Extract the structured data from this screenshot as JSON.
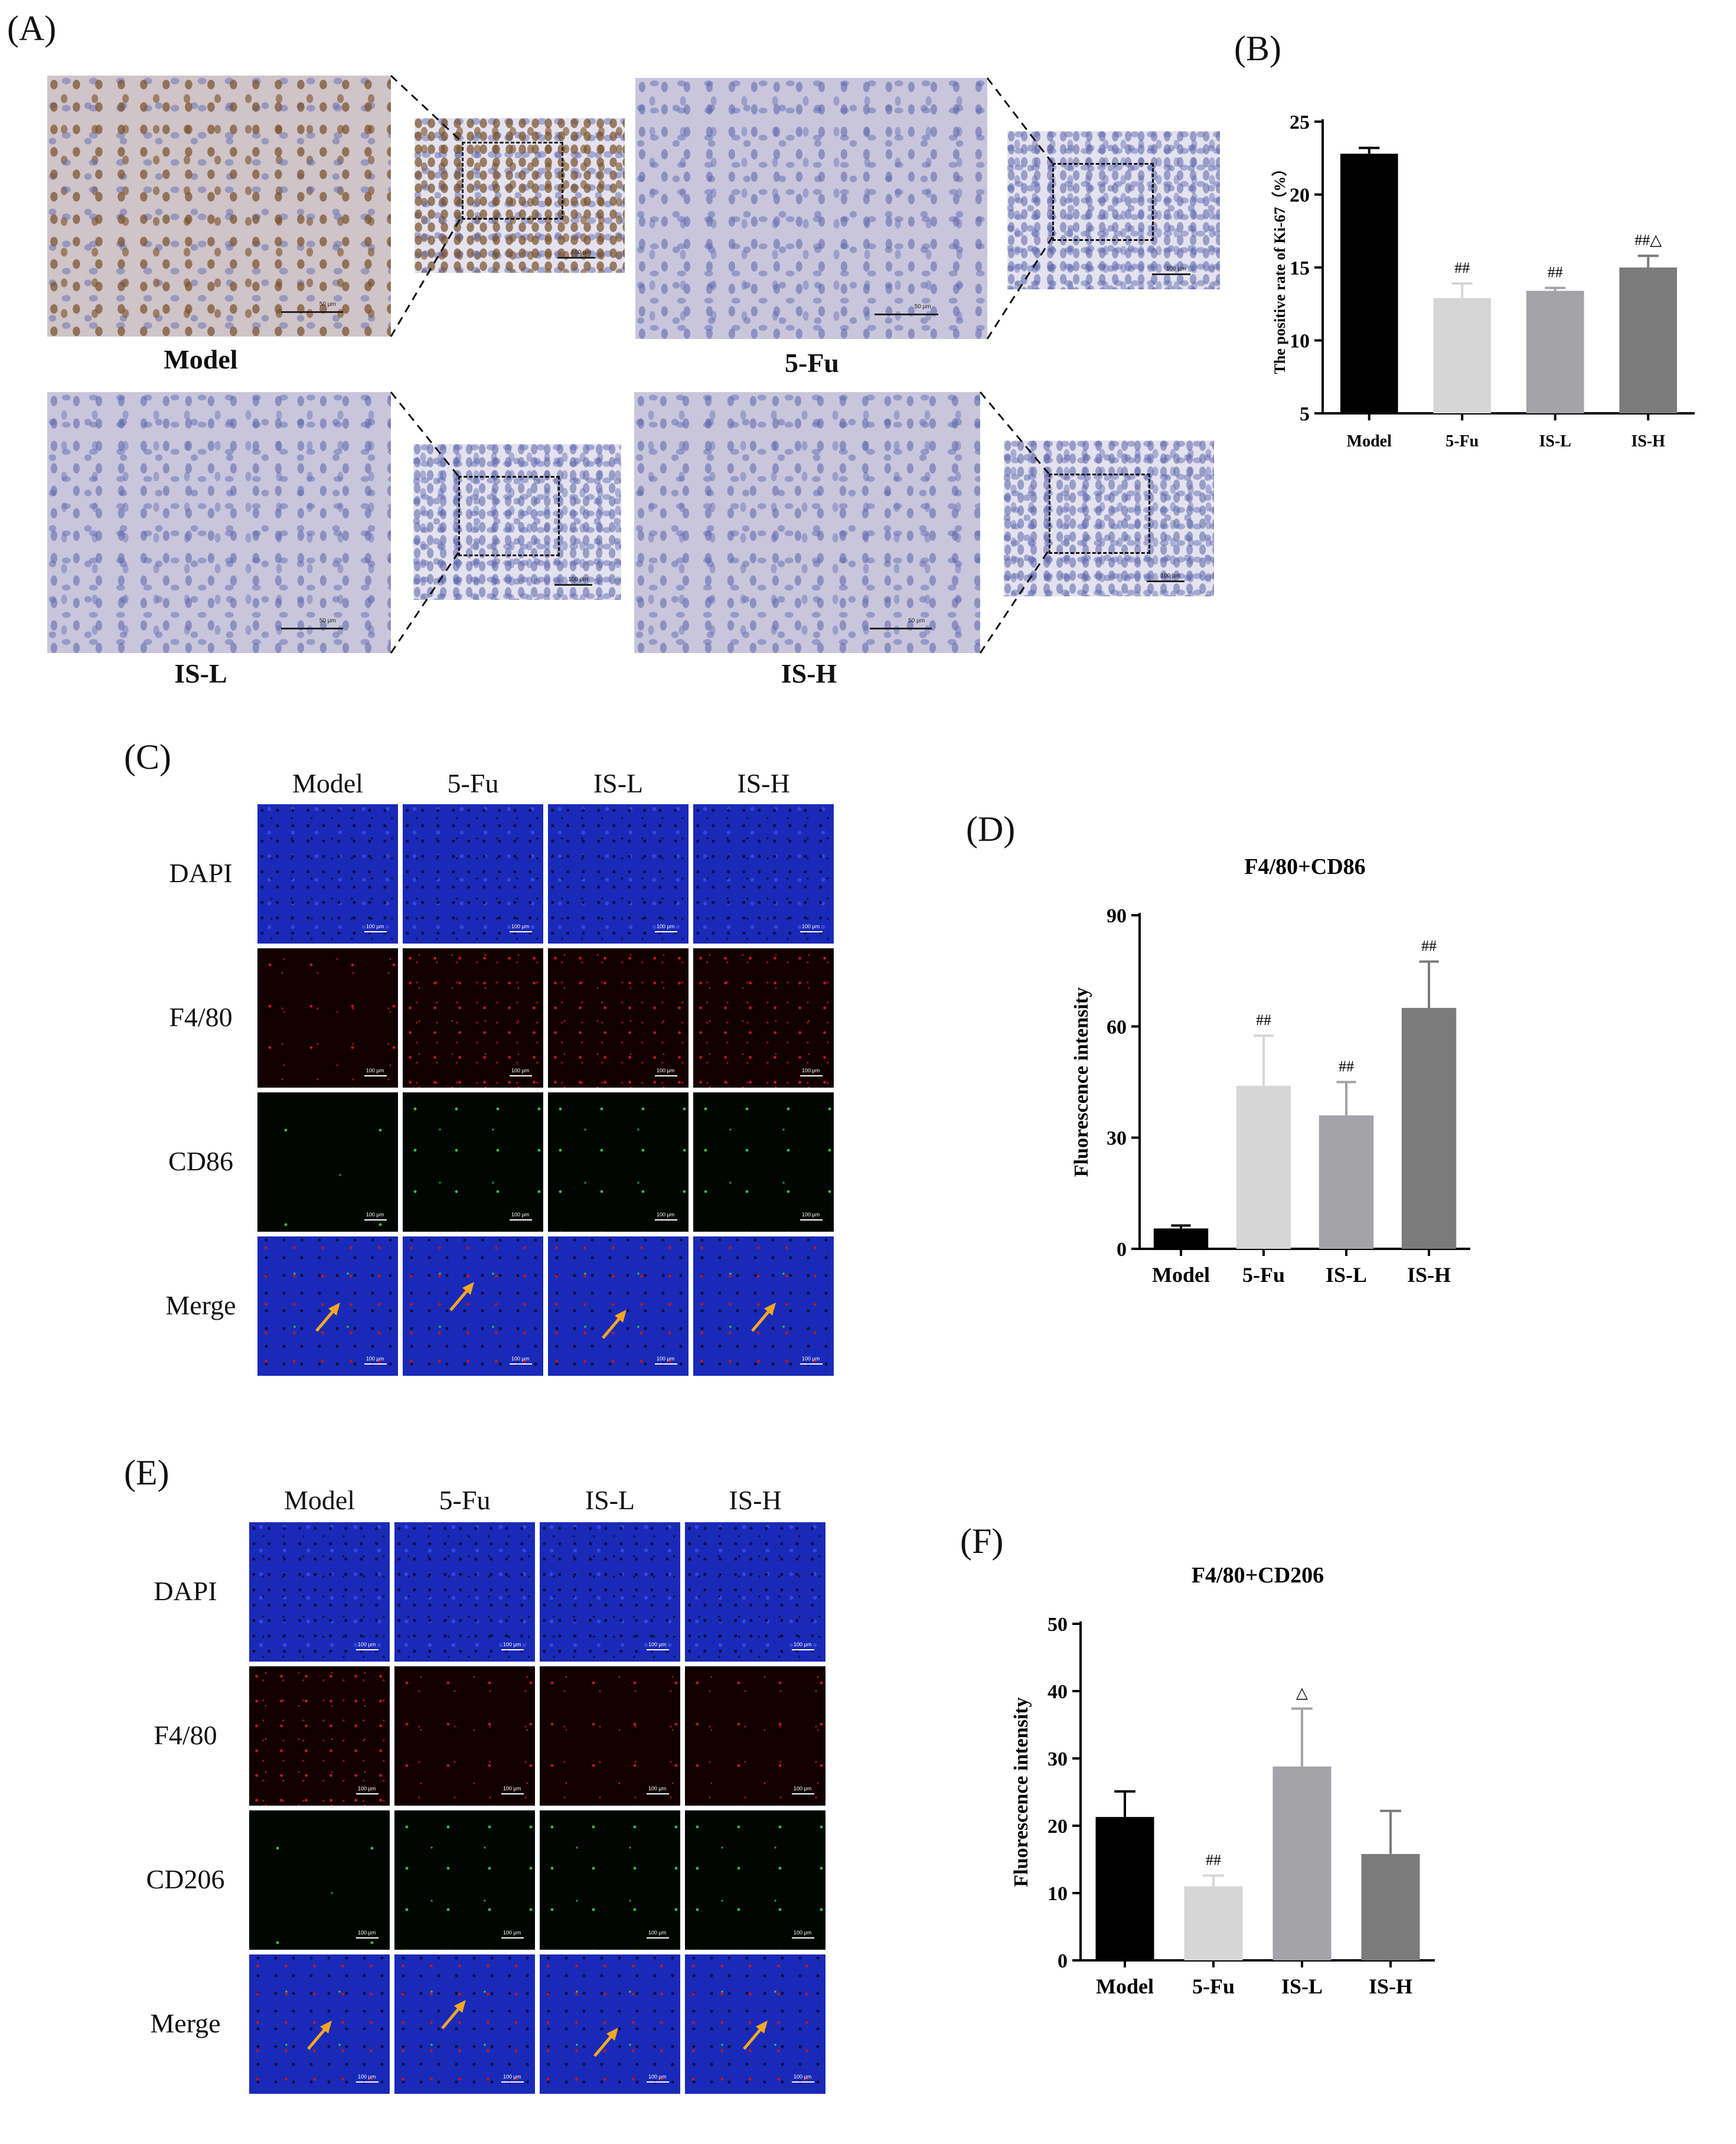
{
  "panels": {
    "A": {
      "letter": "(A)",
      "groups": [
        "Model",
        "5-Fu",
        "IS-L",
        "IS-H"
      ],
      "scale_hi": "50 μm",
      "scale_lo": "100 μm"
    },
    "B": {
      "letter": "(B)"
    },
    "C": {
      "letter": "(C)",
      "columns": [
        "Model",
        "5-Fu",
        "IS-L",
        "IS-H"
      ],
      "rows": [
        "DAPI",
        "F4/80",
        "CD86",
        "Merge"
      ],
      "scale": "100 μm"
    },
    "D": {
      "letter": "(D)"
    },
    "E": {
      "letter": "(E)",
      "columns": [
        "Model",
        "5-Fu",
        "IS-L",
        "IS-H"
      ],
      "rows": [
        "DAPI",
        "F4/80",
        "CD206",
        "Merge"
      ],
      "scale": "100 μm"
    },
    "F": {
      "letter": "(F)"
    }
  },
  "colors": {
    "model": "#000000",
    "fu": "#d6d6d6",
    "isl": "#a3a3a8",
    "ish": "#7b7b7b",
    "arrow": "#f5a623"
  },
  "chart_data": [
    {
      "id": "B",
      "type": "bar",
      "title": "",
      "ylabel": "The positive rate of Ki-67（%）",
      "xlabel": "",
      "categories": [
        "Model",
        "5-Fu",
        "IS-L",
        "IS-H"
      ],
      "values": [
        22.8,
        12.9,
        13.4,
        15.0
      ],
      "errors": [
        0.4,
        1.0,
        0.2,
        0.8
      ],
      "annotations": [
        "",
        "##",
        "##",
        "##△"
      ],
      "ylim": [
        5,
        25
      ],
      "yticks": [
        5,
        10,
        15,
        20,
        25
      ]
    },
    {
      "id": "D",
      "type": "bar",
      "title": "F4/80+CD86",
      "ylabel": "Fluorescence intensity",
      "xlabel": "",
      "categories": [
        "Model",
        "5-Fu",
        "IS-L",
        "IS-H"
      ],
      "values": [
        5.5,
        44,
        36,
        65
      ],
      "errors": [
        0.8,
        13.5,
        9,
        12.5
      ],
      "annotations": [
        "",
        "##",
        "##",
        "##"
      ],
      "ylim": [
        0,
        90
      ],
      "yticks": [
        0,
        30,
        60,
        90
      ]
    },
    {
      "id": "F",
      "type": "bar",
      "title": "F4/80+CD206",
      "ylabel": "Fluorescence intensity",
      "xlabel": "",
      "categories": [
        "Model",
        "5-Fu",
        "IS-L",
        "IS-H"
      ],
      "values": [
        21.3,
        11.0,
        28.8,
        15.8
      ],
      "errors": [
        3.8,
        1.6,
        8.6,
        6.4
      ],
      "annotations": [
        "",
        "##",
        "△",
        ""
      ],
      "ylim": [
        0,
        50
      ],
      "yticks": [
        0,
        10,
        20,
        30,
        40,
        50
      ]
    }
  ]
}
